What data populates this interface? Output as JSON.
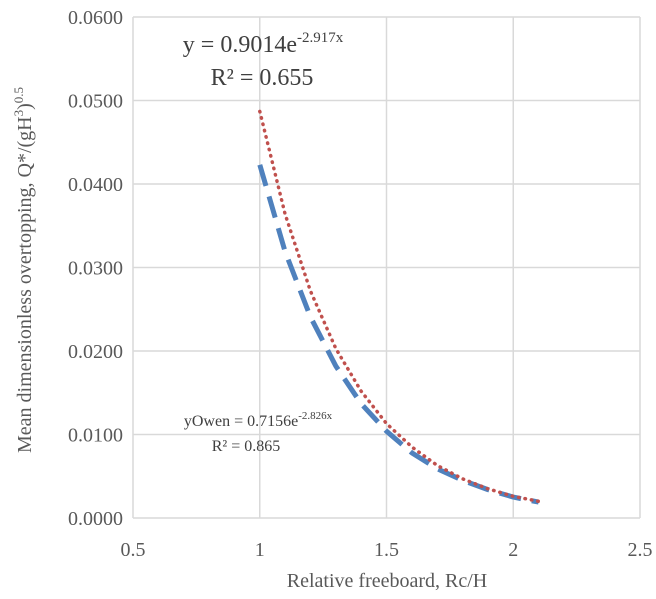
{
  "chart_data": {
    "type": "line",
    "xlabel": "Relative freeboard, Rc/H",
    "ylabel": {
      "text": "Mean dimensionless overtopping, Q*/(gH",
      "sup1": "3",
      "mid": ")",
      "sup2": "0.5"
    },
    "xlim": [
      0.5,
      2.5
    ],
    "ylim": [
      0,
      0.06
    ],
    "x_ticks": [
      "0.5",
      "1",
      "1.5",
      "2",
      "2.5"
    ],
    "y_ticks": [
      "0.0000",
      "0.0100",
      "0.0200",
      "0.0300",
      "0.0400",
      "0.0500",
      "0.0600"
    ],
    "grid": true,
    "series": [
      {
        "style": "dotted",
        "color": "#c0504d",
        "x": [
          1.0,
          1.1,
          1.2,
          1.3,
          1.4,
          1.5,
          1.6,
          1.7,
          1.8,
          1.9,
          2.0,
          2.1
        ],
        "y": [
          0.0487,
          0.0364,
          0.0272,
          0.0203,
          0.0152,
          0.0113,
          0.0085,
          0.0063,
          0.0047,
          0.0035,
          0.0026,
          0.002
        ]
      },
      {
        "style": "dashed",
        "color": "#4f81bd",
        "x": [
          1.0,
          1.1,
          1.2,
          1.3,
          1.4,
          1.5,
          1.6,
          1.7,
          1.8,
          1.9,
          2.0,
          2.1
        ],
        "y": [
          0.0423,
          0.0319,
          0.0241,
          0.0182,
          0.0137,
          0.0104,
          0.0078,
          0.0059,
          0.0045,
          0.0034,
          0.0025,
          0.0019
        ]
      }
    ],
    "annotations": {
      "fit1": {
        "prefix": "y = 0.9014e",
        "exp": "-2.917x",
        "r2": "R² = 0.655"
      },
      "fit2": {
        "prefix": "yOwen = 0.7156e",
        "exp": "-2.826x",
        "r2": "R² = 0.865"
      }
    }
  }
}
